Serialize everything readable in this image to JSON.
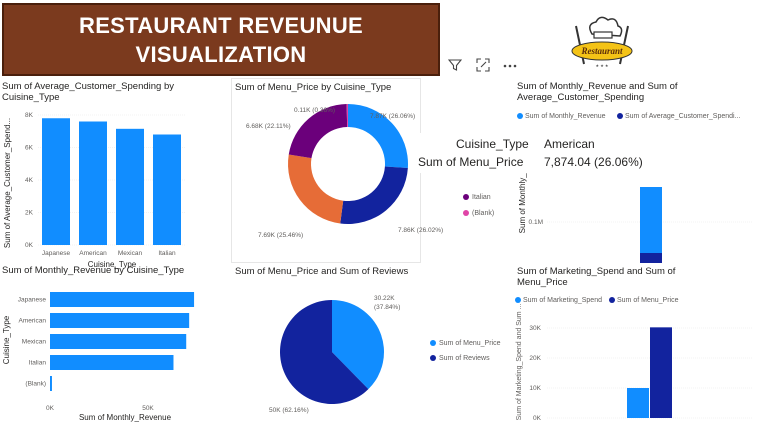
{
  "header": {
    "title_line1": "RESTAURANT REVEUNUE",
    "title_line2": "VISUALIZATION",
    "logo_text": "Restaurant"
  },
  "tooltip": {
    "field1_label": "Cuisine_Type",
    "field1_value": "American",
    "field2_label": "Sum of Menu_Price",
    "field2_value": "7,874.04 (26.06%)"
  },
  "colors": {
    "primary": "#118dff",
    "dark": "#12239e",
    "orange": "#e66c37",
    "purple": "#6b007b",
    "pink": "#e044a7",
    "title_bg": "#7b3a1e"
  },
  "chart_data": [
    {
      "id": "avg_spending",
      "type": "bar",
      "title": "Sum of Average_Customer_Spending by Cuisine_Type",
      "categories": [
        "Japanese",
        "American",
        "Mexican",
        "Italian"
      ],
      "values": [
        7800,
        7600,
        7150,
        6800
      ],
      "ylim": [
        0,
        8000
      ],
      "yticks": [
        "0K",
        "2K",
        "4K",
        "6K",
        "8K"
      ],
      "xlabel": "Cuisine_Type",
      "ylabel": "Sum of Average_Customer_Spend..."
    },
    {
      "id": "menu_price_donut",
      "type": "pie",
      "title": "Sum of Menu_Price by Cuisine_Type",
      "categories": [
        "American",
        "Mexican",
        "Japanese",
        "Italian",
        "(Blank)"
      ],
      "values": [
        7.87,
        7.86,
        7.69,
        6.68,
        0.11
      ],
      "labels": [
        "7.87K (26.06%)",
        "7.86K (26.02%)",
        "7.69K (25.46%)",
        "6.68K (22.11%)",
        "0.11K (0.36%)"
      ],
      "legend": [
        "Italian",
        "(Blank)"
      ]
    },
    {
      "id": "monthly_rev_avg",
      "type": "bar",
      "title": "Sum of Monthly_Revenue and Sum of Average_Customer_Spending",
      "legend": [
        "Sum of Monthly_Revenue",
        "Sum of Average_Customer_Spendi..."
      ],
      "ylabel": "Sum of Monthly_Reve",
      "ytick": "0.1M"
    },
    {
      "id": "monthly_revenue",
      "type": "bar",
      "title": "Sum of Monthly_Revenue by Cuisine_Type",
      "categories": [
        "Japanese",
        "American",
        "Mexican",
        "Italian",
        "(Blank)"
      ],
      "values": [
        73500,
        71000,
        69500,
        63000,
        1000
      ],
      "xlim": [
        0,
        75000
      ],
      "xticks": [
        "0K",
        "50K"
      ],
      "xlabel": "Sum of Monthly_Revenue",
      "ylabel": "Cuisine_Type"
    },
    {
      "id": "price_reviews_pie",
      "type": "pie",
      "title": "Sum of Menu_Price and Sum of Reviews",
      "categories": [
        "Sum of Menu_Price",
        "Sum of Reviews"
      ],
      "values": [
        30.22,
        50
      ],
      "labels": [
        "30.22K (37.84%)",
        "50K (62.16%)"
      ]
    },
    {
      "id": "marketing_menu",
      "type": "bar",
      "title": "Sum of Marketing_Spend and Sum of Menu_Price",
      "legend": [
        "Sum of Marketing_Spend",
        "Sum of Menu_Price"
      ],
      "series": [
        {
          "name": "Sum of Marketing_Spend",
          "values": [
            10000
          ]
        },
        {
          "name": "Sum of Menu_Price",
          "values": [
            30220
          ]
        }
      ],
      "yticks": [
        "0K",
        "10K",
        "20K",
        "30K"
      ],
      "ylim": [
        0,
        30000
      ],
      "ylabel": "Sum of Marketing_Spend and Sum ..."
    }
  ]
}
